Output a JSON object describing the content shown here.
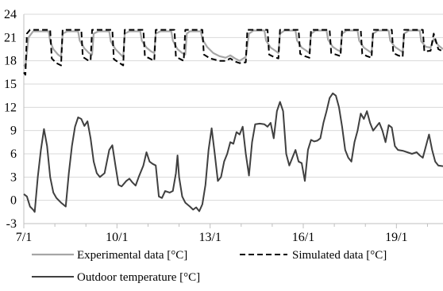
{
  "chart_data": {
    "type": "line",
    "title": "",
    "xlabel": "",
    "ylabel": "",
    "x_unit": "day of January",
    "xlim": [
      7,
      20.5
    ],
    "ylim": [
      -3,
      24
    ],
    "y_ticks": [
      -3,
      0,
      3,
      6,
      9,
      12,
      15,
      18,
      21,
      24
    ],
    "x_ticks": [
      {
        "value": 7,
        "label": "7/1"
      },
      {
        "value": 10,
        "label": "10/1"
      },
      {
        "value": 13,
        "label": "13/1"
      },
      {
        "value": 16,
        "label": "16/1"
      },
      {
        "value": 19,
        "label": "19/1"
      }
    ],
    "grid": {
      "horizontal": true,
      "vertical": false
    },
    "legend_placement": "bottom",
    "series": [
      {
        "name": "Experimental data [°C]",
        "color": "#a6a6a6",
        "style": "solid",
        "points": [
          [
            7.0,
            17.5
          ],
          [
            7.05,
            17.2
          ],
          [
            7.15,
            21.0
          ],
          [
            7.3,
            21.8
          ],
          [
            7.6,
            21.8
          ],
          [
            7.8,
            21.8
          ],
          [
            7.85,
            20.5
          ],
          [
            7.95,
            19.5
          ],
          [
            8.1,
            18.8
          ],
          [
            8.2,
            18.5
          ],
          [
            8.25,
            21.5
          ],
          [
            8.4,
            21.8
          ],
          [
            8.75,
            21.8
          ],
          [
            8.8,
            20.6
          ],
          [
            8.95,
            19.6
          ],
          [
            9.1,
            19.0
          ],
          [
            9.2,
            18.8
          ],
          [
            9.25,
            21.5
          ],
          [
            9.4,
            21.8
          ],
          [
            9.75,
            21.8
          ],
          [
            9.8,
            20.5
          ],
          [
            9.95,
            19.5
          ],
          [
            10.1,
            18.9
          ],
          [
            10.2,
            18.5
          ],
          [
            10.25,
            21.5
          ],
          [
            10.4,
            21.8
          ],
          [
            10.75,
            21.8
          ],
          [
            10.8,
            20.6
          ],
          [
            10.95,
            19.7
          ],
          [
            11.1,
            19.2
          ],
          [
            11.2,
            19.0
          ],
          [
            11.25,
            21.5
          ],
          [
            11.4,
            21.8
          ],
          [
            11.75,
            21.8
          ],
          [
            11.8,
            20.6
          ],
          [
            11.95,
            19.5
          ],
          [
            12.1,
            19.0
          ],
          [
            12.2,
            18.8
          ],
          [
            12.25,
            21.5
          ],
          [
            12.35,
            21.8
          ],
          [
            12.7,
            21.8
          ],
          [
            12.75,
            20.8
          ],
          [
            12.9,
            19.8
          ],
          [
            13.1,
            19.0
          ],
          [
            13.3,
            18.6
          ],
          [
            13.5,
            18.4
          ],
          [
            13.65,
            18.7
          ],
          [
            13.8,
            18.3
          ],
          [
            13.95,
            18.0
          ],
          [
            14.15,
            18.5
          ],
          [
            14.25,
            21.5
          ],
          [
            14.4,
            21.9
          ],
          [
            14.75,
            21.9
          ],
          [
            14.8,
            20.6
          ],
          [
            14.95,
            19.7
          ],
          [
            15.1,
            19.3
          ],
          [
            15.2,
            19.0
          ],
          [
            15.25,
            21.5
          ],
          [
            15.4,
            21.9
          ],
          [
            15.75,
            21.9
          ],
          [
            15.8,
            20.6
          ],
          [
            15.95,
            19.7
          ],
          [
            16.1,
            19.3
          ],
          [
            16.2,
            19.0
          ],
          [
            16.25,
            21.5
          ],
          [
            16.4,
            21.9
          ],
          [
            16.75,
            21.9
          ],
          [
            16.8,
            20.7
          ],
          [
            16.95,
            19.8
          ],
          [
            17.1,
            19.4
          ],
          [
            17.2,
            19.2
          ],
          [
            17.25,
            21.5
          ],
          [
            17.4,
            21.9
          ],
          [
            17.75,
            21.9
          ],
          [
            17.8,
            20.6
          ],
          [
            17.95,
            19.7
          ],
          [
            18.1,
            19.3
          ],
          [
            18.2,
            19.0
          ],
          [
            18.25,
            21.5
          ],
          [
            18.4,
            21.9
          ],
          [
            18.75,
            21.9
          ],
          [
            18.8,
            20.6
          ],
          [
            18.95,
            19.8
          ],
          [
            19.1,
            19.4
          ],
          [
            19.2,
            19.1
          ],
          [
            19.25,
            21.5
          ],
          [
            19.4,
            21.9
          ],
          [
            19.75,
            21.9
          ],
          [
            19.8,
            20.5
          ],
          [
            19.95,
            19.8
          ],
          [
            20.1,
            19.7
          ],
          [
            20.2,
            20.8
          ],
          [
            20.35,
            20.0
          ],
          [
            20.5,
            19.5
          ]
        ]
      },
      {
        "name": "Simulated data [°C]",
        "color": "#000000",
        "style": "dashed",
        "points": [
          [
            7.0,
            16.5
          ],
          [
            7.05,
            16.2
          ],
          [
            7.1,
            21.5
          ],
          [
            7.2,
            22.0
          ],
          [
            7.85,
            22.0
          ],
          [
            7.9,
            18.3
          ],
          [
            8.05,
            17.7
          ],
          [
            8.2,
            17.4
          ],
          [
            8.25,
            22.0
          ],
          [
            8.85,
            22.0
          ],
          [
            8.9,
            18.5
          ],
          [
            9.05,
            18.1
          ],
          [
            9.15,
            18.0
          ],
          [
            9.2,
            22.0
          ],
          [
            9.85,
            22.0
          ],
          [
            9.9,
            18.2
          ],
          [
            10.05,
            17.8
          ],
          [
            10.2,
            17.4
          ],
          [
            10.25,
            22.0
          ],
          [
            10.85,
            22.0
          ],
          [
            10.9,
            18.6
          ],
          [
            11.05,
            18.3
          ],
          [
            11.2,
            18.0
          ],
          [
            11.25,
            22.0
          ],
          [
            11.85,
            22.0
          ],
          [
            11.9,
            18.5
          ],
          [
            12.05,
            18.2
          ],
          [
            12.15,
            18.0
          ],
          [
            12.2,
            22.0
          ],
          [
            12.75,
            22.0
          ],
          [
            12.8,
            18.8
          ],
          [
            13.0,
            18.3
          ],
          [
            13.3,
            18.0
          ],
          [
            13.5,
            18.0
          ],
          [
            13.65,
            18.3
          ],
          [
            13.8,
            17.9
          ],
          [
            13.95,
            17.7
          ],
          [
            14.15,
            17.8
          ],
          [
            14.2,
            22.0
          ],
          [
            14.85,
            22.0
          ],
          [
            14.9,
            18.8
          ],
          [
            15.05,
            18.5
          ],
          [
            15.2,
            18.3
          ],
          [
            15.25,
            22.0
          ],
          [
            15.85,
            22.0
          ],
          [
            15.9,
            18.9
          ],
          [
            16.05,
            18.6
          ],
          [
            16.2,
            18.4
          ],
          [
            16.25,
            22.0
          ],
          [
            16.85,
            22.0
          ],
          [
            16.9,
            19.0
          ],
          [
            17.05,
            18.8
          ],
          [
            17.2,
            18.6
          ],
          [
            17.25,
            22.0
          ],
          [
            17.85,
            22.0
          ],
          [
            17.9,
            18.9
          ],
          [
            18.05,
            18.6
          ],
          [
            18.2,
            18.4
          ],
          [
            18.25,
            22.0
          ],
          [
            18.85,
            22.0
          ],
          [
            18.9,
            19.0
          ],
          [
            19.05,
            18.7
          ],
          [
            19.2,
            18.5
          ],
          [
            19.25,
            22.0
          ],
          [
            19.85,
            22.0
          ],
          [
            19.9,
            19.2
          ],
          [
            20.1,
            19.3
          ],
          [
            20.2,
            21.5
          ],
          [
            20.35,
            19.5
          ],
          [
            20.5,
            19.2
          ]
        ]
      },
      {
        "name": "Outdoor temperature [°C]",
        "color": "#404040",
        "style": "solid",
        "points": [
          [
            7.0,
            0.8
          ],
          [
            7.1,
            0.5
          ],
          [
            7.2,
            -0.8
          ],
          [
            7.3,
            -1.2
          ],
          [
            7.35,
            -1.5
          ],
          [
            7.45,
            3.0
          ],
          [
            7.55,
            6.5
          ],
          [
            7.65,
            9.2
          ],
          [
            7.75,
            7.0
          ],
          [
            7.85,
            3.0
          ],
          [
            7.95,
            1.0
          ],
          [
            8.05,
            0.3
          ],
          [
            8.2,
            -0.3
          ],
          [
            8.35,
            -0.8
          ],
          [
            8.45,
            3.5
          ],
          [
            8.55,
            7.0
          ],
          [
            8.65,
            9.5
          ],
          [
            8.75,
            10.7
          ],
          [
            8.85,
            10.5
          ],
          [
            8.95,
            9.6
          ],
          [
            9.05,
            10.2
          ],
          [
            9.15,
            8.0
          ],
          [
            9.25,
            5.0
          ],
          [
            9.35,
            3.5
          ],
          [
            9.45,
            3.0
          ],
          [
            9.6,
            3.5
          ],
          [
            9.75,
            6.5
          ],
          [
            9.85,
            7.1
          ],
          [
            9.95,
            4.5
          ],
          [
            10.05,
            2.0
          ],
          [
            10.15,
            1.8
          ],
          [
            10.3,
            2.5
          ],
          [
            10.4,
            2.8
          ],
          [
            10.5,
            2.3
          ],
          [
            10.6,
            1.9
          ],
          [
            10.7,
            3.0
          ],
          [
            10.85,
            4.5
          ],
          [
            10.95,
            6.2
          ],
          [
            11.05,
            5.0
          ],
          [
            11.15,
            4.7
          ],
          [
            11.25,
            4.5
          ],
          [
            11.35,
            0.5
          ],
          [
            11.45,
            0.3
          ],
          [
            11.55,
            1.2
          ],
          [
            11.7,
            1.0
          ],
          [
            11.8,
            1.2
          ],
          [
            11.9,
            3.5
          ],
          [
            11.95,
            5.8
          ],
          [
            12.0,
            3.0
          ],
          [
            12.1,
            0.5
          ],
          [
            12.2,
            -0.3
          ],
          [
            12.35,
            -0.8
          ],
          [
            12.45,
            -1.2
          ],
          [
            12.55,
            -0.9
          ],
          [
            12.65,
            -1.4
          ],
          [
            12.75,
            -0.5
          ],
          [
            12.85,
            2.0
          ],
          [
            12.95,
            6.5
          ],
          [
            13.05,
            9.3
          ],
          [
            13.15,
            6.0
          ],
          [
            13.25,
            2.5
          ],
          [
            13.35,
            3.0
          ],
          [
            13.45,
            5.0
          ],
          [
            13.55,
            6.0
          ],
          [
            13.65,
            7.5
          ],
          [
            13.75,
            7.3
          ],
          [
            13.85,
            8.8
          ],
          [
            13.95,
            8.5
          ],
          [
            14.05,
            9.5
          ],
          [
            14.15,
            6.0
          ],
          [
            14.25,
            3.2
          ],
          [
            14.35,
            7.5
          ],
          [
            14.45,
            9.8
          ],
          [
            14.6,
            9.9
          ],
          [
            14.75,
            9.8
          ],
          [
            14.85,
            9.5
          ],
          [
            14.95,
            10.0
          ],
          [
            15.05,
            8.0
          ],
          [
            15.15,
            11.5
          ],
          [
            15.25,
            12.7
          ],
          [
            15.35,
            11.5
          ],
          [
            15.45,
            6.0
          ],
          [
            15.55,
            4.5
          ],
          [
            15.65,
            5.5
          ],
          [
            15.75,
            6.5
          ],
          [
            15.85,
            5.0
          ],
          [
            15.95,
            4.8
          ],
          [
            16.05,
            2.5
          ],
          [
            16.15,
            6.5
          ],
          [
            16.25,
            7.8
          ],
          [
            16.35,
            7.6
          ],
          [
            16.45,
            7.7
          ],
          [
            16.55,
            8.0
          ],
          [
            16.65,
            10.0
          ],
          [
            16.75,
            11.5
          ],
          [
            16.85,
            13.2
          ],
          [
            16.95,
            13.8
          ],
          [
            17.05,
            13.5
          ],
          [
            17.15,
            12.0
          ],
          [
            17.25,
            9.5
          ],
          [
            17.35,
            6.5
          ],
          [
            17.45,
            5.5
          ],
          [
            17.55,
            5.0
          ],
          [
            17.65,
            7.5
          ],
          [
            17.75,
            9.0
          ],
          [
            17.85,
            11.2
          ],
          [
            17.95,
            10.5
          ],
          [
            18.05,
            11.5
          ],
          [
            18.15,
            10.0
          ],
          [
            18.25,
            9.0
          ],
          [
            18.35,
            9.5
          ],
          [
            18.45,
            10.0
          ],
          [
            18.55,
            9.0
          ],
          [
            18.65,
            7.5
          ],
          [
            18.75,
            9.7
          ],
          [
            18.85,
            9.4
          ],
          [
            18.95,
            7.0
          ],
          [
            19.05,
            6.5
          ],
          [
            19.2,
            6.4
          ],
          [
            19.35,
            6.2
          ],
          [
            19.5,
            6.0
          ],
          [
            19.65,
            6.2
          ],
          [
            19.75,
            5.8
          ],
          [
            19.85,
            5.5
          ],
          [
            19.95,
            7.0
          ],
          [
            20.05,
            8.5
          ],
          [
            20.15,
            6.5
          ],
          [
            20.25,
            5.0
          ],
          [
            20.35,
            4.5
          ],
          [
            20.5,
            4.4
          ]
        ]
      }
    ]
  }
}
